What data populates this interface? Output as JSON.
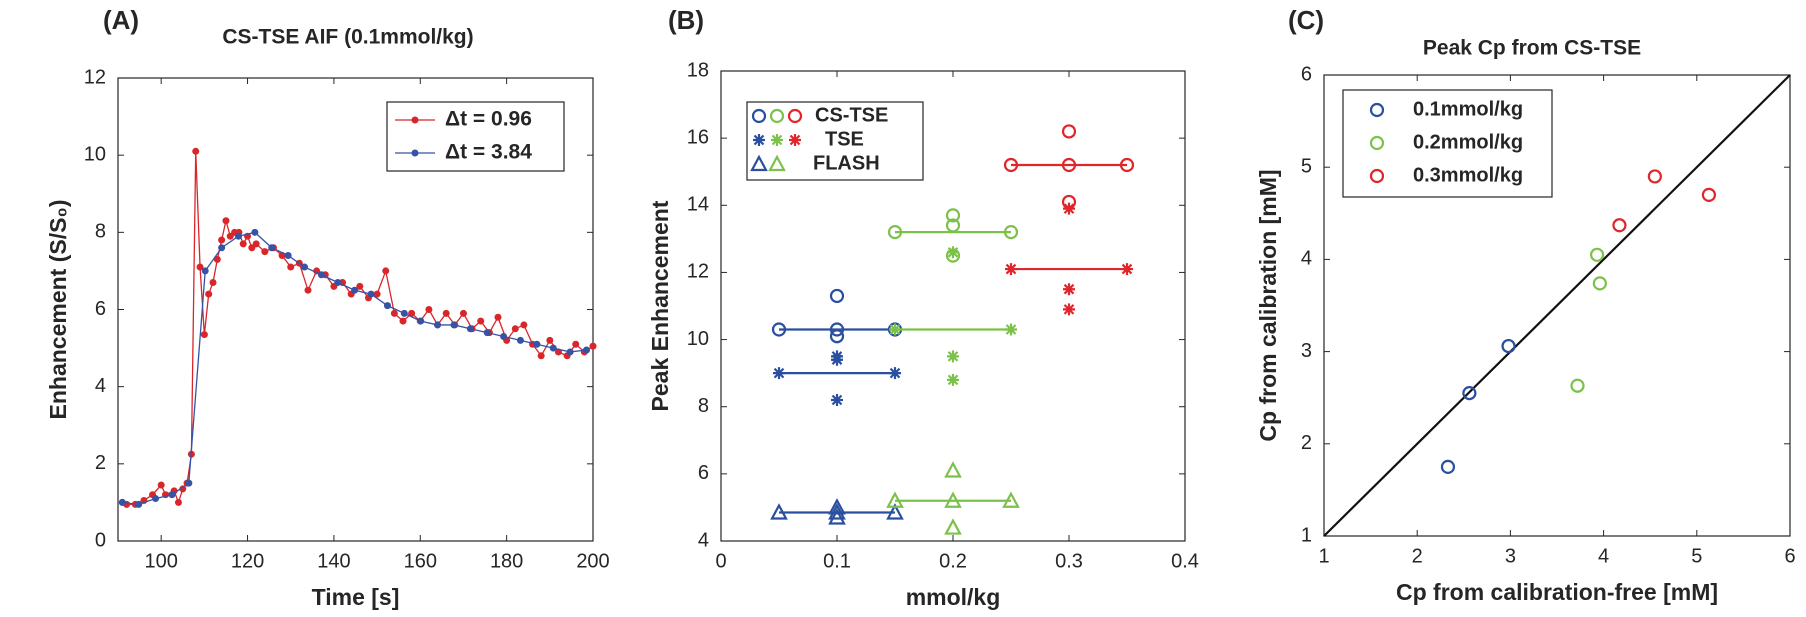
{
  "chart_data": [
    {
      "type": "line",
      "panel_label": "(A)",
      "title": "CS-TSE AIF (0.1mmol/kg)",
      "xlabel": "Time [s]",
      "ylabel": "Enhancement (S/S₀)",
      "xlim": [
        90,
        200
      ],
      "xticks": [
        100,
        120,
        140,
        160,
        180,
        200
      ],
      "ylim": [
        0,
        12
      ],
      "yticks": [
        0,
        2,
        4,
        6,
        8,
        10,
        12
      ],
      "legend": "upper right",
      "series": [
        {
          "name": "Δt = 0.96",
          "color": "#d9262b",
          "x": [
            91,
            92,
            94,
            96,
            98,
            100,
            101,
            103,
            104,
            105,
            106,
            107,
            108,
            109,
            110,
            111,
            112,
            113,
            114,
            115,
            116,
            117,
            118,
            119,
            120,
            121,
            122,
            124,
            126,
            128,
            130,
            132,
            134,
            136,
            138,
            140,
            142,
            144,
            146,
            148,
            150,
            152,
            154,
            156,
            158,
            160,
            162,
            164,
            166,
            168,
            170,
            172,
            174,
            176,
            178,
            180,
            182,
            184,
            186,
            188,
            190,
            192,
            194,
            196,
            198,
            200
          ],
          "values": [
            1.0,
            0.95,
            0.95,
            1.05,
            1.2,
            1.45,
            1.2,
            1.3,
            1.0,
            1.35,
            1.5,
            2.25,
            10.1,
            7.1,
            5.35,
            6.4,
            6.7,
            7.3,
            7.8,
            8.3,
            7.9,
            8.0,
            8.0,
            7.7,
            7.9,
            7.6,
            7.7,
            7.5,
            7.6,
            7.4,
            7.1,
            7.2,
            6.5,
            7.0,
            6.9,
            6.6,
            6.7,
            6.4,
            6.6,
            6.3,
            6.4,
            7.0,
            5.9,
            5.7,
            5.9,
            5.7,
            6.0,
            5.6,
            5.9,
            5.6,
            5.9,
            5.5,
            5.7,
            5.4,
            5.8,
            5.2,
            5.5,
            5.6,
            5.1,
            4.8,
            5.2,
            4.9,
            4.8,
            5.1,
            4.9,
            5.05
          ]
        },
        {
          "name": "Δt = 3.84",
          "color": "#3653a6",
          "x": [
            91,
            94.8,
            98.7,
            102.5,
            106.4,
            110.2,
            114,
            117.9,
            121.7,
            125.6,
            129.4,
            133.2,
            137.1,
            140.9,
            144.8,
            148.6,
            152.4,
            156.3,
            160.1,
            164,
            167.8,
            171.6,
            175.5,
            179.3,
            183.2,
            187,
            190.8,
            194.7,
            198.5
          ],
          "values": [
            1.0,
            0.95,
            1.1,
            1.2,
            1.5,
            7.0,
            7.6,
            7.9,
            8.0,
            7.6,
            7.4,
            7.1,
            6.9,
            6.7,
            6.5,
            6.4,
            6.1,
            5.9,
            5.7,
            5.6,
            5.6,
            5.5,
            5.4,
            5.3,
            5.2,
            5.1,
            5.0,
            4.9,
            4.95
          ]
        }
      ]
    },
    {
      "type": "scatter",
      "panel_label": "(B)",
      "xlabel": "mmol/kg",
      "ylabel": "Peak Enhancement",
      "xlim": [
        0,
        0.4
      ],
      "xticks": [
        0,
        0.1,
        0.2,
        0.3,
        0.4
      ],
      "ylim": [
        4,
        18
      ],
      "yticks": [
        4,
        6,
        8,
        10,
        12,
        14,
        16,
        18
      ],
      "legend": "upper left",
      "legend_colors": [
        "#2a4fa0",
        "#7cc24a",
        "#e0262b"
      ],
      "legend_entries": [
        {
          "name": "CS-TSE",
          "marker": "circle"
        },
        {
          "name": "TSE",
          "marker": "star"
        },
        {
          "name": "FLASH",
          "marker": "triangle"
        }
      ],
      "series": [
        {
          "marker": "circle",
          "color": "#2a4fa0",
          "x": [
            0.1,
            0.1,
            0.1
          ],
          "values": [
            11.3,
            10.3,
            10.1
          ],
          "mean": {
            "x": [
              0.05,
              0.15
            ],
            "y": 10.3
          }
        },
        {
          "marker": "star",
          "color": "#2a4fa0",
          "x": [
            0.1,
            0.1,
            0.1
          ],
          "values": [
            9.5,
            9.4,
            8.2
          ],
          "mean": {
            "x": [
              0.05,
              0.15
            ],
            "y": 9.0
          }
        },
        {
          "marker": "triangle",
          "color": "#2a4fa0",
          "x": [
            0.1,
            0.1,
            0.1
          ],
          "values": [
            5.0,
            4.7,
            4.85
          ],
          "mean": {
            "x": [
              0.05,
              0.15
            ],
            "y": 4.85
          }
        },
        {
          "marker": "circle",
          "color": "#7cc24a",
          "x": [
            0.2,
            0.2,
            0.2
          ],
          "values": [
            13.7,
            13.4,
            12.5
          ],
          "mean": {
            "x": [
              0.15,
              0.25
            ],
            "y": 13.2
          }
        },
        {
          "marker": "star",
          "color": "#7cc24a",
          "x": [
            0.2,
            0.2,
            0.2
          ],
          "values": [
            12.6,
            9.5,
            8.8
          ],
          "mean": {
            "x": [
              0.15,
              0.25
            ],
            "y": 10.3
          }
        },
        {
          "marker": "triangle",
          "color": "#7cc24a",
          "x": [
            0.2,
            0.2,
            0.2
          ],
          "values": [
            6.1,
            4.4,
            5.2
          ],
          "mean": {
            "x": [
              0.15,
              0.25
            ],
            "y": 5.2
          }
        },
        {
          "marker": "circle",
          "color": "#e0262b",
          "x": [
            0.3,
            0.3,
            0.3
          ],
          "values": [
            16.2,
            15.2,
            14.1
          ],
          "mean": {
            "x": [
              0.25,
              0.35
            ],
            "y": 15.2
          }
        },
        {
          "marker": "star",
          "color": "#e0262b",
          "x": [
            0.3,
            0.3,
            0.3
          ],
          "values": [
            13.9,
            11.5,
            10.9
          ],
          "mean": {
            "x": [
              0.25,
              0.35
            ],
            "y": 12.1
          }
        }
      ]
    },
    {
      "type": "scatter",
      "panel_label": "(C)",
      "title": "Peak Cp from CS-TSE",
      "xlabel": "Cp from calibration-free [mM]",
      "ylabel": "Cp from calibration [mM]",
      "xlim": [
        1,
        6
      ],
      "xticks": [
        1,
        2,
        3,
        4,
        5,
        6
      ],
      "ylim": [
        1,
        6
      ],
      "yticks": [
        1,
        2,
        3,
        4,
        5,
        6
      ],
      "legend": "upper left",
      "identity_line": true,
      "series": [
        {
          "name": "0.1mmol/kg",
          "marker": "circle",
          "color": "#2a4fa0",
          "x": [
            2.33,
            2.56,
            2.98
          ],
          "values": [
            1.75,
            2.55,
            3.06
          ]
        },
        {
          "name": "0.2mmol/kg",
          "marker": "circle",
          "color": "#7cc24a",
          "x": [
            3.72,
            3.93,
            3.96
          ],
          "values": [
            2.63,
            4.05,
            3.74
          ]
        },
        {
          "name": "0.3mmol/kg",
          "marker": "circle",
          "color": "#e0262b",
          "x": [
            4.17,
            4.55,
            5.13
          ],
          "values": [
            4.37,
            4.9,
            4.7
          ]
        }
      ]
    }
  ]
}
